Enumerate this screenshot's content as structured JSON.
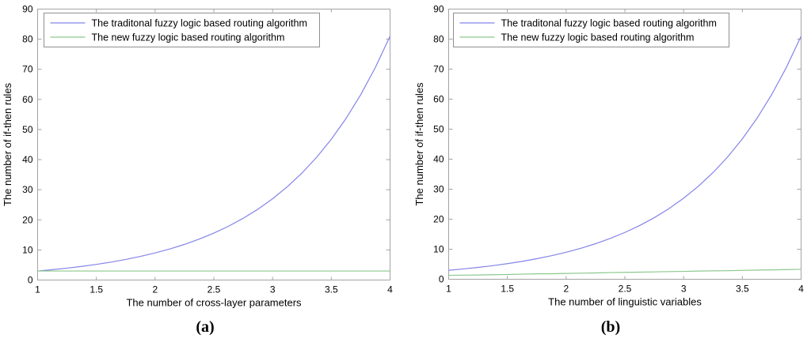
{
  "style": {
    "background": "#ffffff",
    "axis_color": "#a3a3a3",
    "legend_border_color": "#8f8f8f",
    "text_color": "#000000",
    "traditional_line_color": "#8484ea",
    "new_line_color": "#8cc88c"
  },
  "chart_data": [
    {
      "id": "a",
      "type": "line",
      "caption": "(a)",
      "xlabel": "The number of cross-layer parameters",
      "ylabel": "The number of if-then rules",
      "xlim": [
        1,
        4
      ],
      "ylim": [
        0,
        90
      ],
      "xticks": [
        1,
        1.5,
        2,
        2.5,
        3,
        3.5,
        4
      ],
      "xtick_labels": [
        "1",
        "1.5",
        "2",
        "2.5",
        "3",
        "3.5",
        "4"
      ],
      "yticks": [
        0,
        10,
        20,
        30,
        40,
        50,
        60,
        70,
        80,
        90
      ],
      "ytick_labels": [
        "0",
        "10",
        "20",
        "30",
        "40",
        "50",
        "60",
        "70",
        "80",
        "90"
      ],
      "grid": false,
      "legend_position": "top-left",
      "x": [
        1,
        1.125,
        1.25,
        1.375,
        1.5,
        1.625,
        1.75,
        1.875,
        2,
        2.125,
        2.25,
        2.375,
        2.5,
        2.625,
        2.75,
        2.875,
        3,
        3.125,
        3.25,
        3.375,
        3.5,
        3.625,
        3.75,
        3.875,
        4
      ],
      "series": [
        {
          "name": "The traditonal fuzzy logic based routing algorithm",
          "color_key": "traditional_line_color",
          "values": [
            3,
            3.44,
            3.95,
            4.53,
            5.2,
            5.96,
            6.84,
            7.85,
            9,
            10.32,
            11.84,
            13.59,
            15.59,
            17.88,
            20.51,
            23.53,
            27,
            30.97,
            35.53,
            40.76,
            46.77,
            53.65,
            61.55,
            70.61,
            81
          ]
        },
        {
          "name": "The new fuzzy logic based routing algorithm",
          "color_key": "new_line_color",
          "values": [
            3,
            3,
            3,
            3,
            3,
            3,
            3,
            3,
            3,
            3,
            3,
            3,
            3,
            3,
            3,
            3,
            3,
            3,
            3,
            3,
            3,
            3,
            3,
            3,
            3
          ]
        }
      ]
    },
    {
      "id": "b",
      "type": "line",
      "caption": "(b)",
      "xlabel": "The number of linguistic variables",
      "ylabel": "The number of if-then rules",
      "xlim": [
        1,
        4
      ],
      "ylim": [
        0,
        90
      ],
      "xticks": [
        1,
        1.5,
        2,
        2.5,
        3,
        3.5,
        4
      ],
      "xtick_labels": [
        "1",
        "1.5",
        "2",
        "2.5",
        "3",
        "3.5",
        "4"
      ],
      "yticks": [
        0,
        10,
        20,
        30,
        40,
        50,
        60,
        70,
        80,
        90
      ],
      "ytick_labels": [
        "0",
        "10",
        "20",
        "30",
        "40",
        "50",
        "60",
        "70",
        "80",
        "90"
      ],
      "grid": false,
      "legend_position": "top-left",
      "x": [
        1,
        1.125,
        1.25,
        1.375,
        1.5,
        1.625,
        1.75,
        1.875,
        2,
        2.125,
        2.25,
        2.375,
        2.5,
        2.625,
        2.75,
        2.875,
        3,
        3.125,
        3.25,
        3.375,
        3.5,
        3.625,
        3.75,
        3.875,
        4
      ],
      "series": [
        {
          "name": "The traditonal fuzzy logic based routing algorithm",
          "color_key": "traditional_line_color",
          "values": [
            3,
            3.44,
            3.95,
            4.53,
            5.2,
            5.96,
            6.84,
            7.85,
            9,
            10.32,
            11.84,
            13.59,
            15.59,
            17.88,
            20.51,
            23.53,
            27,
            30.97,
            35.53,
            40.76,
            46.77,
            53.65,
            61.55,
            70.61,
            81
          ]
        },
        {
          "name": "The new fuzzy logic based routing algorithm",
          "color_key": "new_line_color",
          "values": [
            1.3,
            1.36,
            1.42,
            1.52,
            1.58,
            1.7,
            1.8,
            1.85,
            1.95,
            2.02,
            2.1,
            2.22,
            2.3,
            2.36,
            2.45,
            2.55,
            2.62,
            2.72,
            2.8,
            2.85,
            2.95,
            3.05,
            3.12,
            3.22,
            3.3
          ]
        }
      ]
    }
  ],
  "legend_items": [
    {
      "label": "The traditonal fuzzy logic based routing algorithm",
      "color_key": "traditional_line_color"
    },
    {
      "label": "The new fuzzy logic based routing algorithm",
      "color_key": "new_line_color"
    }
  ]
}
